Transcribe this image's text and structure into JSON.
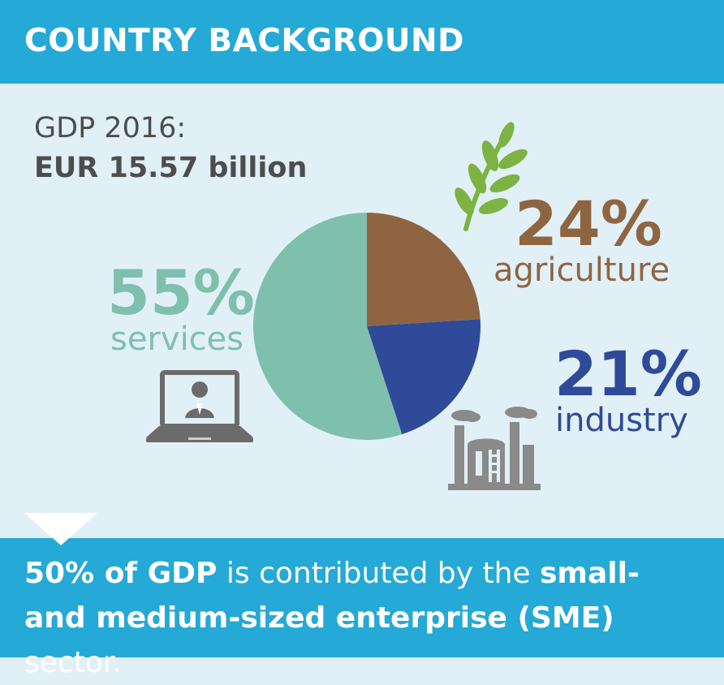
{
  "header": {
    "title": "COUNTRY BACKGROUND"
  },
  "gdp": {
    "label": "GDP 2016:",
    "value": "EUR 15.57 billion"
  },
  "colors": {
    "header_bg": "#25a9d6",
    "page_bg": "#e1f0f7",
    "services": "#7fbfae",
    "agriculture": "#8f6541",
    "industry": "#2e4a98",
    "icon_gray": "#6b6b6b",
    "wheat_green": "#7cb342"
  },
  "icons": {
    "agriculture": "wheat-icon",
    "services": "laptop-icon",
    "industry": "factory-icon"
  },
  "chart_data": {
    "type": "pie",
    "slices": [
      {
        "name": "agriculture",
        "pct_label": "24%",
        "value": 24
      },
      {
        "name": "industry",
        "pct_label": "21%",
        "value": 21
      },
      {
        "name": "services",
        "pct_label": "55%",
        "value": 55
      }
    ]
  },
  "footer": {
    "line1_bold": "50% of GDP",
    "line1_rest": " is contributed by the ",
    "line1_bold2": "small-",
    "line2_bold": "and medium-sized enterprise (SME)",
    "line2_rest": " sector."
  }
}
